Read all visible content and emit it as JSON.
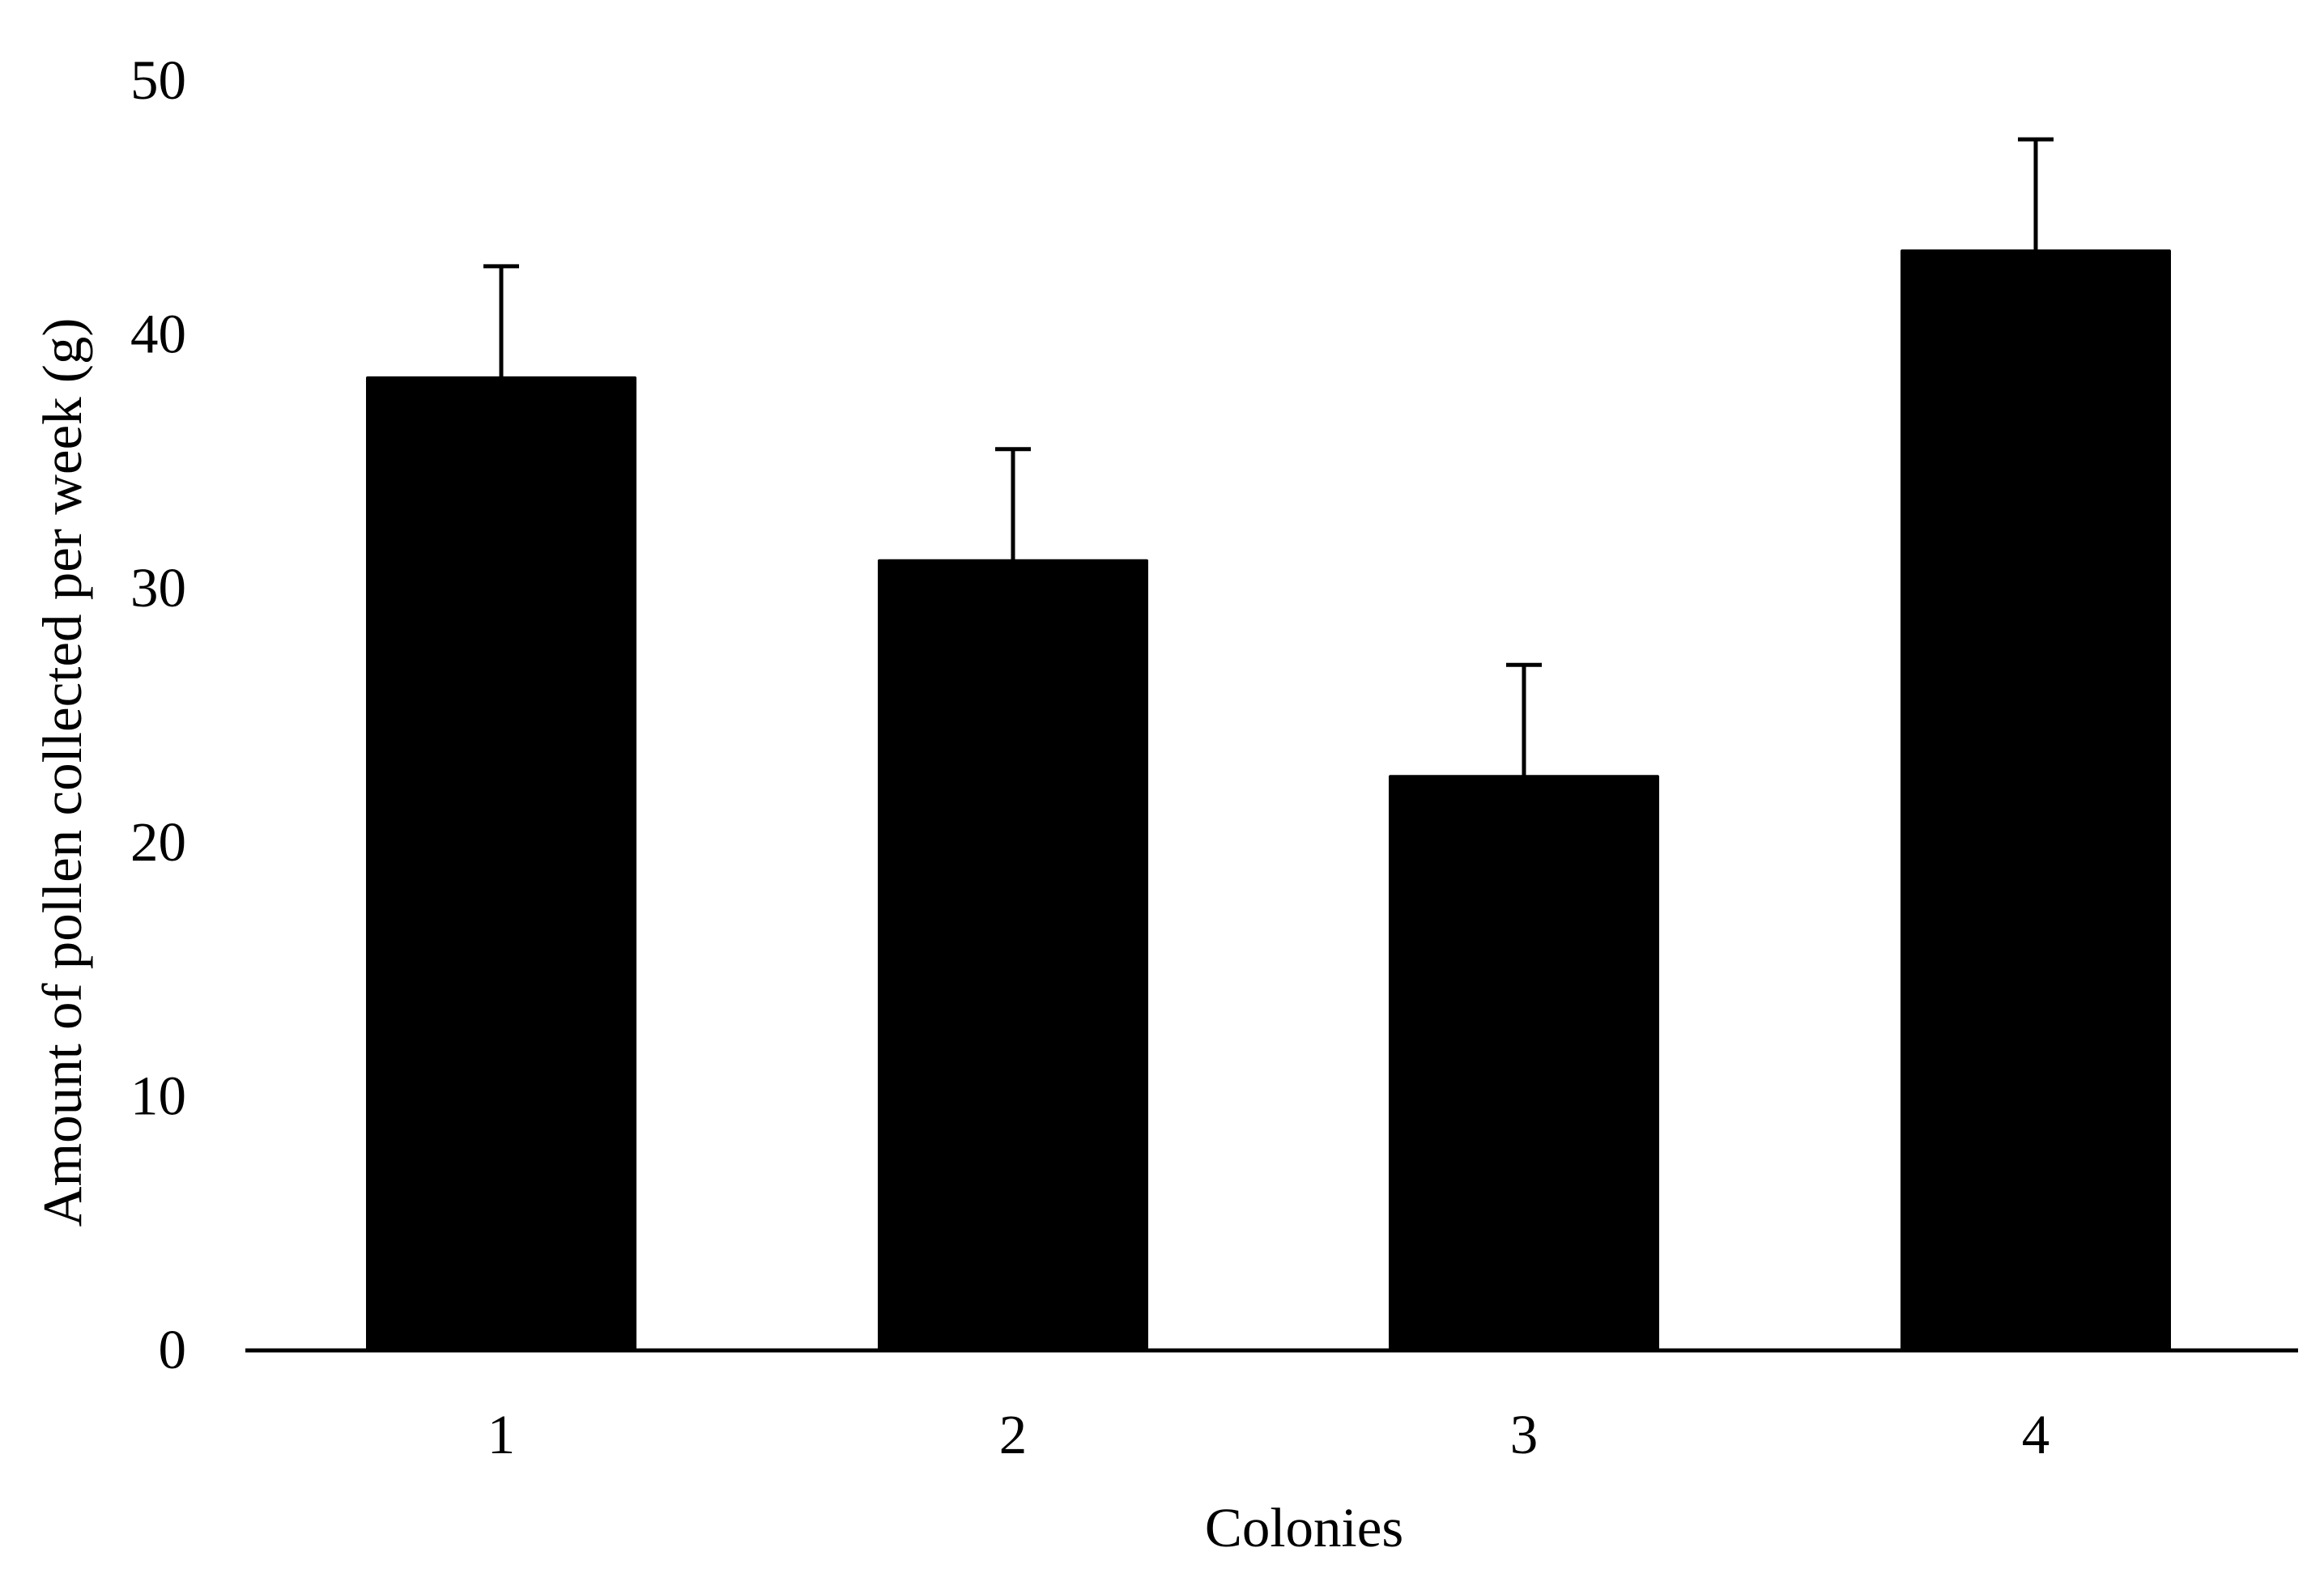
{
  "chart_data": {
    "type": "bar",
    "title": "",
    "xlabel": "Colonies",
    "ylabel": "Amount of pollen collected per week (g)",
    "categories": [
      "1",
      "2",
      "3",
      "4"
    ],
    "values": [
      38.3,
      31.1,
      22.6,
      43.3
    ],
    "error_upper": [
      4.4,
      4.4,
      4.4,
      4.4
    ],
    "ylim": [
      0,
      50
    ],
    "yticks": [
      0,
      10,
      20,
      30,
      40,
      50
    ],
    "grid": false,
    "legend": "none",
    "bar_color": "#000000"
  }
}
